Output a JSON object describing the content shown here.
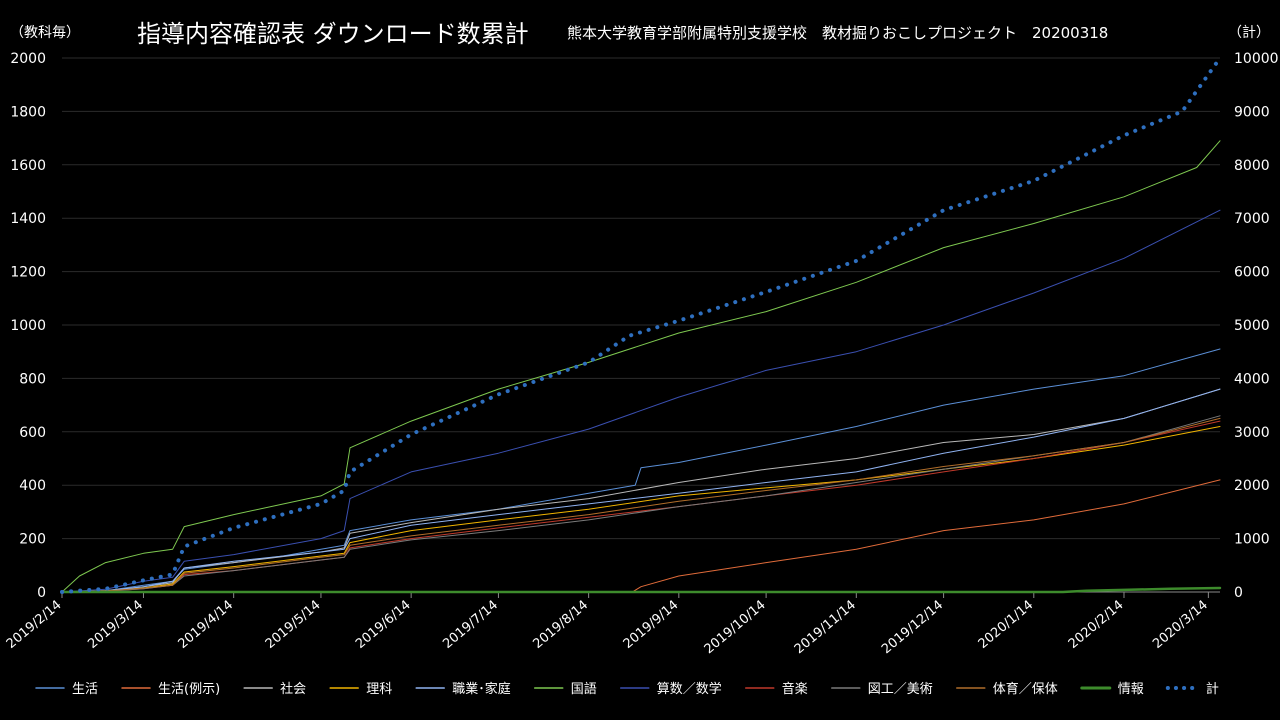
{
  "chart_data": {
    "type": "line",
    "title": "指導内容確認表 ダウンロード数累計",
    "subtitle": "熊本大学教育学部附属特別支援学校　教材掘りおこしプロジェクト　20200318",
    "ylabel_left": "（教科毎）",
    "ylabel_right": "（計）",
    "ylim_left": [
      0,
      2000
    ],
    "ylim_right": [
      0,
      10000
    ],
    "yticks_left": [
      0,
      200,
      400,
      600,
      800,
      1000,
      1200,
      1400,
      1600,
      1800,
      2000
    ],
    "yticks_right": [
      0,
      1000,
      2000,
      3000,
      4000,
      5000,
      6000,
      7000,
      8000,
      9000,
      10000
    ],
    "x_start": "2019/2/14",
    "x_end": "2020/3/18",
    "xticks": [
      "2019/2/14",
      "2019/3/14",
      "2019/4/14",
      "2019/5/14",
      "2019/6/14",
      "2019/7/14",
      "2019/8/14",
      "2019/9/14",
      "2019/10/14",
      "2019/11/14",
      "2019/12/14",
      "2020/1/14",
      "2020/2/14",
      "2020/3/14"
    ],
    "grid": true,
    "legend_position": "bottom",
    "series": [
      {
        "name": "生活",
        "color": "#5b8fd6",
        "width": 1,
        "dash": false,
        "axis": "left",
        "points": [
          [
            "2019/2/14",
            0
          ],
          [
            "2019/3/1",
            5
          ],
          [
            "2019/3/14",
            25
          ],
          [
            "2019/3/24",
            40
          ],
          [
            "2019/3/28",
            85
          ],
          [
            "2019/4/14",
            110
          ],
          [
            "2019/5/1",
            135
          ],
          [
            "2019/5/14",
            160
          ],
          [
            "2019/5/22",
            175
          ],
          [
            "2019/5/24",
            230
          ],
          [
            "2019/6/14",
            270
          ],
          [
            "2019/7/14",
            310
          ],
          [
            "2019/8/14",
            370
          ],
          [
            "2019/8/30",
            400
          ],
          [
            "2019/9/1",
            465
          ],
          [
            "2019/9/14",
            485
          ],
          [
            "2019/10/14",
            550
          ],
          [
            "2019/11/14",
            620
          ],
          [
            "2019/12/14",
            700
          ],
          [
            "2020/1/14",
            760
          ],
          [
            "2020/2/14",
            810
          ],
          [
            "2020/3/18",
            910
          ]
        ]
      },
      {
        "name": "生活(例示)",
        "color": "#e06b3a",
        "width": 1,
        "dash": false,
        "axis": "left",
        "points": [
          [
            "2019/2/14",
            0
          ],
          [
            "2019/8/29",
            0
          ],
          [
            "2019/9/1",
            20
          ],
          [
            "2019/9/14",
            60
          ],
          [
            "2019/10/14",
            110
          ],
          [
            "2019/11/14",
            160
          ],
          [
            "2019/12/14",
            230
          ],
          [
            "2020/1/14",
            270
          ],
          [
            "2020/2/14",
            330
          ],
          [
            "2020/3/18",
            420
          ]
        ]
      },
      {
        "name": "社会",
        "color": "#b8b8b8",
        "width": 1,
        "dash": false,
        "axis": "left",
        "points": [
          [
            "2019/2/14",
            0
          ],
          [
            "2019/3/1",
            5
          ],
          [
            "2019/3/14",
            20
          ],
          [
            "2019/3/24",
            35
          ],
          [
            "2019/3/28",
            90
          ],
          [
            "2019/4/14",
            110
          ],
          [
            "2019/5/14",
            150
          ],
          [
            "2019/5/22",
            165
          ],
          [
            "2019/5/24",
            220
          ],
          [
            "2019/6/14",
            260
          ],
          [
            "2019/7/14",
            310
          ],
          [
            "2019/8/14",
            350
          ],
          [
            "2019/9/14",
            410
          ],
          [
            "2019/10/14",
            460
          ],
          [
            "2019/11/14",
            500
          ],
          [
            "2019/12/14",
            560
          ],
          [
            "2020/1/14",
            590
          ],
          [
            "2020/2/14",
            650
          ],
          [
            "2020/3/18",
            760
          ]
        ]
      },
      {
        "name": "理科",
        "color": "#f0b400",
        "width": 1,
        "dash": false,
        "axis": "left",
        "points": [
          [
            "2019/2/14",
            0
          ],
          [
            "2019/3/1",
            5
          ],
          [
            "2019/3/14",
            15
          ],
          [
            "2019/3/24",
            30
          ],
          [
            "2019/3/28",
            75
          ],
          [
            "2019/4/14",
            95
          ],
          [
            "2019/5/14",
            135
          ],
          [
            "2019/5/22",
            145
          ],
          [
            "2019/5/24",
            185
          ],
          [
            "2019/6/14",
            230
          ],
          [
            "2019/7/14",
            270
          ],
          [
            "2019/8/14",
            310
          ],
          [
            "2019/9/14",
            360
          ],
          [
            "2019/10/14",
            390
          ],
          [
            "2019/11/14",
            420
          ],
          [
            "2019/12/14",
            460
          ],
          [
            "2020/1/14",
            500
          ],
          [
            "2020/2/14",
            550
          ],
          [
            "2020/3/18",
            620
          ]
        ]
      },
      {
        "name": "職業･家庭",
        "color": "#8fb2f0",
        "width": 1,
        "dash": false,
        "axis": "left",
        "points": [
          [
            "2019/2/14",
            0
          ],
          [
            "2019/3/1",
            5
          ],
          [
            "2019/3/14",
            20
          ],
          [
            "2019/3/24",
            40
          ],
          [
            "2019/3/28",
            90
          ],
          [
            "2019/4/14",
            115
          ],
          [
            "2019/5/14",
            150
          ],
          [
            "2019/5/22",
            160
          ],
          [
            "2019/5/24",
            200
          ],
          [
            "2019/6/14",
            250
          ],
          [
            "2019/7/14",
            290
          ],
          [
            "2019/8/14",
            330
          ],
          [
            "2019/9/14",
            370
          ],
          [
            "2019/10/14",
            410
          ],
          [
            "2019/11/14",
            450
          ],
          [
            "2019/12/14",
            520
          ],
          [
            "2020/1/14",
            580
          ],
          [
            "2020/2/14",
            650
          ],
          [
            "2020/3/18",
            760
          ]
        ]
      },
      {
        "name": "国語",
        "color": "#7ec850",
        "width": 1,
        "dash": false,
        "axis": "left",
        "points": [
          [
            "2019/2/14",
            0
          ],
          [
            "2019/2/20",
            60
          ],
          [
            "2019/3/1",
            110
          ],
          [
            "2019/3/14",
            145
          ],
          [
            "2019/3/24",
            160
          ],
          [
            "2019/3/28",
            245
          ],
          [
            "2019/4/14",
            290
          ],
          [
            "2019/5/14",
            360
          ],
          [
            "2019/5/22",
            405
          ],
          [
            "2019/5/24",
            540
          ],
          [
            "2019/6/14",
            640
          ],
          [
            "2019/7/14",
            760
          ],
          [
            "2019/8/14",
            860
          ],
          [
            "2019/9/14",
            970
          ],
          [
            "2019/10/14",
            1050
          ],
          [
            "2019/11/14",
            1160
          ],
          [
            "2019/12/14",
            1290
          ],
          [
            "2020/1/14",
            1380
          ],
          [
            "2020/2/14",
            1480
          ],
          [
            "2020/3/10",
            1590
          ],
          [
            "2020/3/18",
            1690
          ]
        ]
      },
      {
        "name": "算数／数学",
        "color": "#3a4fb0",
        "width": 1,
        "dash": false,
        "axis": "left",
        "points": [
          [
            "2019/2/14",
            0
          ],
          [
            "2019/3/1",
            10
          ],
          [
            "2019/3/14",
            40
          ],
          [
            "2019/3/24",
            55
          ],
          [
            "2019/3/28",
            115
          ],
          [
            "2019/4/14",
            140
          ],
          [
            "2019/5/14",
            200
          ],
          [
            "2019/5/22",
            230
          ],
          [
            "2019/5/24",
            350
          ],
          [
            "2019/6/14",
            450
          ],
          [
            "2019/7/14",
            520
          ],
          [
            "2019/8/14",
            610
          ],
          [
            "2019/9/14",
            730
          ],
          [
            "2019/10/14",
            830
          ],
          [
            "2019/11/14",
            900
          ],
          [
            "2019/12/14",
            1000
          ],
          [
            "2020/1/14",
            1120
          ],
          [
            "2020/2/14",
            1250
          ],
          [
            "2020/3/18",
            1430
          ]
        ]
      },
      {
        "name": "音楽",
        "color": "#c0392b",
        "width": 1,
        "dash": false,
        "axis": "left",
        "points": [
          [
            "2019/2/14",
            0
          ],
          [
            "2019/3/1",
            3
          ],
          [
            "2019/3/14",
            12
          ],
          [
            "2019/3/24",
            25
          ],
          [
            "2019/3/28",
            65
          ],
          [
            "2019/4/14",
            80
          ],
          [
            "2019/5/14",
            120
          ],
          [
            "2019/5/22",
            130
          ],
          [
            "2019/5/24",
            165
          ],
          [
            "2019/6/14",
            200
          ],
          [
            "2019/7/14",
            240
          ],
          [
            "2019/8/14",
            280
          ],
          [
            "2019/9/14",
            320
          ],
          [
            "2019/10/14",
            360
          ],
          [
            "2019/11/14",
            400
          ],
          [
            "2019/12/14",
            450
          ],
          [
            "2020/1/14",
            500
          ],
          [
            "2020/2/14",
            560
          ],
          [
            "2020/3/18",
            640
          ]
        ]
      },
      {
        "name": "図工／美術",
        "color": "#7a7a7a",
        "width": 1,
        "dash": false,
        "axis": "left",
        "points": [
          [
            "2019/2/14",
            0
          ],
          [
            "2019/3/1",
            3
          ],
          [
            "2019/3/14",
            12
          ],
          [
            "2019/3/24",
            25
          ],
          [
            "2019/3/28",
            60
          ],
          [
            "2019/4/14",
            80
          ],
          [
            "2019/5/14",
            120
          ],
          [
            "2019/5/22",
            130
          ],
          [
            "2019/5/24",
            160
          ],
          [
            "2019/6/14",
            195
          ],
          [
            "2019/7/14",
            230
          ],
          [
            "2019/8/14",
            270
          ],
          [
            "2019/9/14",
            320
          ],
          [
            "2019/10/14",
            360
          ],
          [
            "2019/11/14",
            410
          ],
          [
            "2019/12/14",
            460
          ],
          [
            "2020/1/14",
            510
          ],
          [
            "2020/2/14",
            560
          ],
          [
            "2020/3/18",
            660
          ]
        ]
      },
      {
        "name": "体育／保体",
        "color": "#b06d2a",
        "width": 1,
        "dash": false,
        "axis": "left",
        "points": [
          [
            "2019/2/14",
            0
          ],
          [
            "2019/3/1",
            4
          ],
          [
            "2019/3/14",
            14
          ],
          [
            "2019/3/24",
            25
          ],
          [
            "2019/3/28",
            70
          ],
          [
            "2019/4/14",
            90
          ],
          [
            "2019/5/14",
            130
          ],
          [
            "2019/5/22",
            140
          ],
          [
            "2019/5/24",
            175
          ],
          [
            "2019/6/14",
            210
          ],
          [
            "2019/7/14",
            250
          ],
          [
            "2019/8/14",
            290
          ],
          [
            "2019/9/14",
            340
          ],
          [
            "2019/10/14",
            380
          ],
          [
            "2019/11/14",
            420
          ],
          [
            "2019/12/14",
            470
          ],
          [
            "2020/1/14",
            510
          ],
          [
            "2020/2/14",
            560
          ],
          [
            "2020/3/18",
            650
          ]
        ]
      },
      {
        "name": "情報",
        "color": "#3d8b2c",
        "width": 2.5,
        "dash": false,
        "axis": "left",
        "points": [
          [
            "2019/2/14",
            0
          ],
          [
            "2020/1/24",
            0
          ],
          [
            "2020/2/1",
            5
          ],
          [
            "2020/2/14",
            8
          ],
          [
            "2020/3/1",
            12
          ],
          [
            "2020/3/18",
            15
          ]
        ]
      },
      {
        "name": "計",
        "color": "#2e6fbf",
        "width": 4,
        "dash": true,
        "axis": "right",
        "points": [
          [
            "2019/2/14",
            0
          ],
          [
            "2019/3/1",
            60
          ],
          [
            "2019/3/14",
            220
          ],
          [
            "2019/3/24",
            330
          ],
          [
            "2019/3/28",
            850
          ],
          [
            "2019/4/14",
            1200
          ],
          [
            "2019/5/14",
            1650
          ],
          [
            "2019/5/22",
            1900
          ],
          [
            "2019/5/24",
            2250
          ],
          [
            "2019/6/14",
            2950
          ],
          [
            "2019/7/14",
            3700
          ],
          [
            "2019/8/14",
            4300
          ],
          [
            "2019/8/28",
            4800
          ],
          [
            "2019/9/14",
            5080
          ],
          [
            "2019/10/14",
            5620
          ],
          [
            "2019/11/14",
            6200
          ],
          [
            "2019/12/14",
            7150
          ],
          [
            "2020/1/14",
            7700
          ],
          [
            "2020/2/14",
            8550
          ],
          [
            "2020/3/5",
            9000
          ],
          [
            "2020/3/18",
            10000
          ]
        ]
      }
    ]
  }
}
